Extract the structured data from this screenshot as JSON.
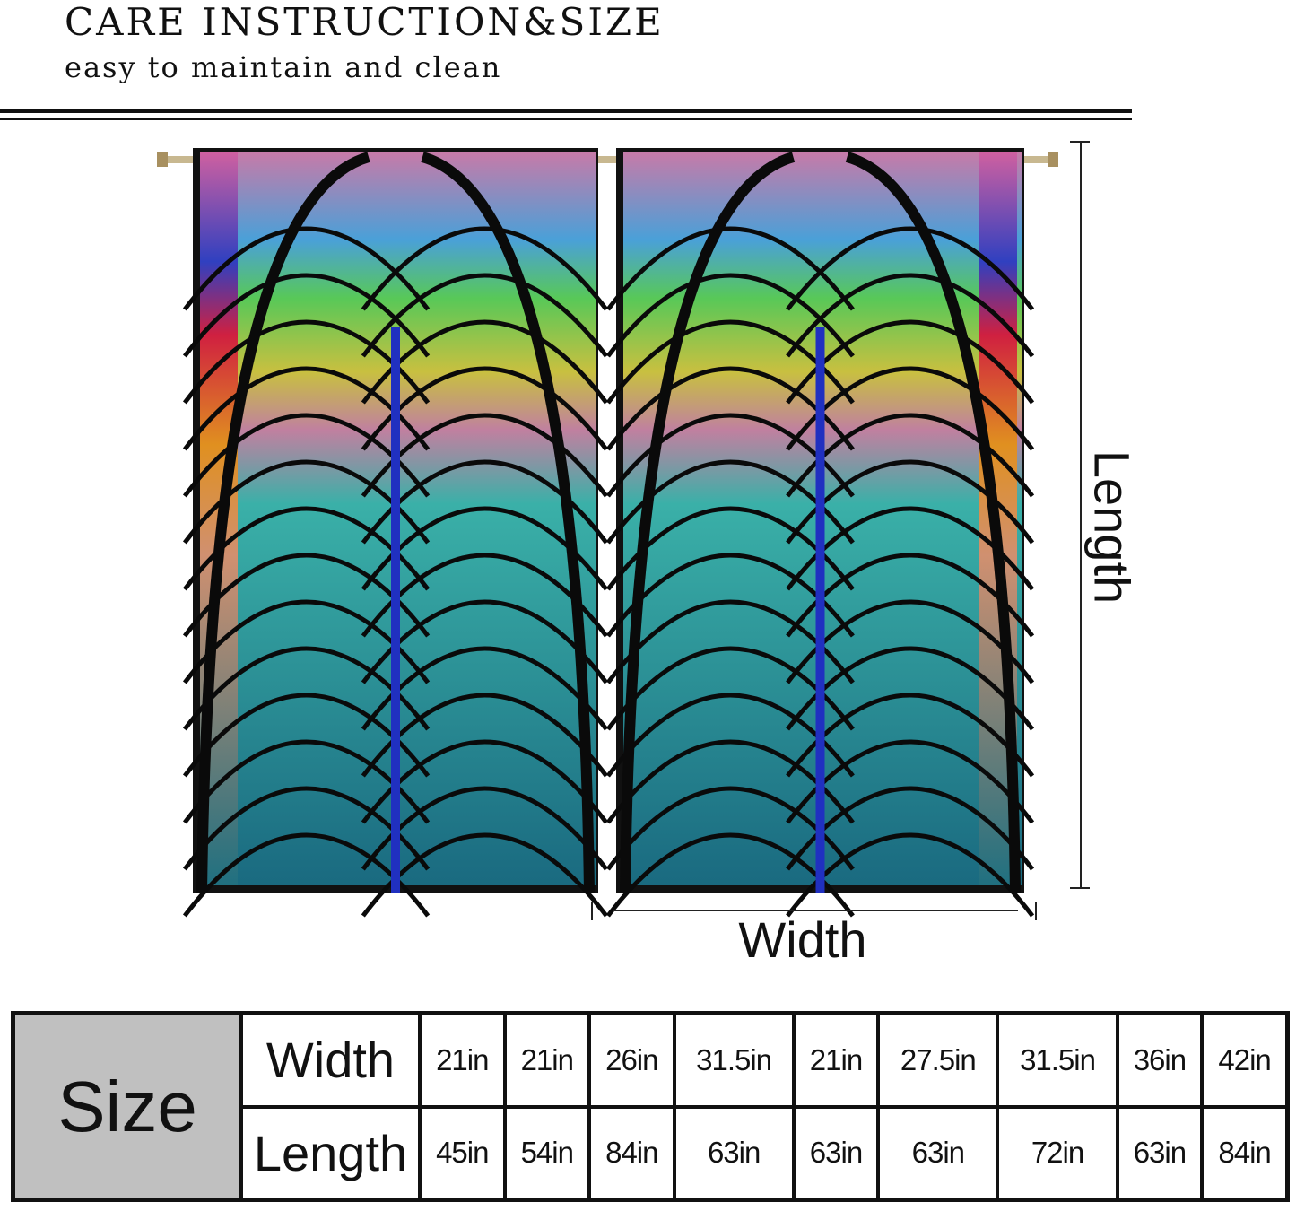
{
  "header": {
    "title": "CARE INSTRUCTION&SIZE",
    "subtitle": "easy to maintain and clean"
  },
  "diagram": {
    "length_label": "Length",
    "width_label": "Width"
  },
  "colors": {
    "text": "#111111",
    "size_cell": "#c0c0c0",
    "curtain_top": "#c86aa0",
    "curtain_bottom": "#1a8a9a"
  },
  "table": {
    "header": "Size",
    "rows": [
      {
        "label": "Width",
        "values": [
          "21in",
          "21in",
          "26in",
          "31.5in",
          "21in",
          "27.5in",
          "31.5in",
          "36in",
          "42in"
        ]
      },
      {
        "label": "Length",
        "values": [
          "45in",
          "54in",
          "84in",
          "63in",
          "63in",
          "63in",
          "72in",
          "63in",
          "84in"
        ]
      }
    ]
  }
}
